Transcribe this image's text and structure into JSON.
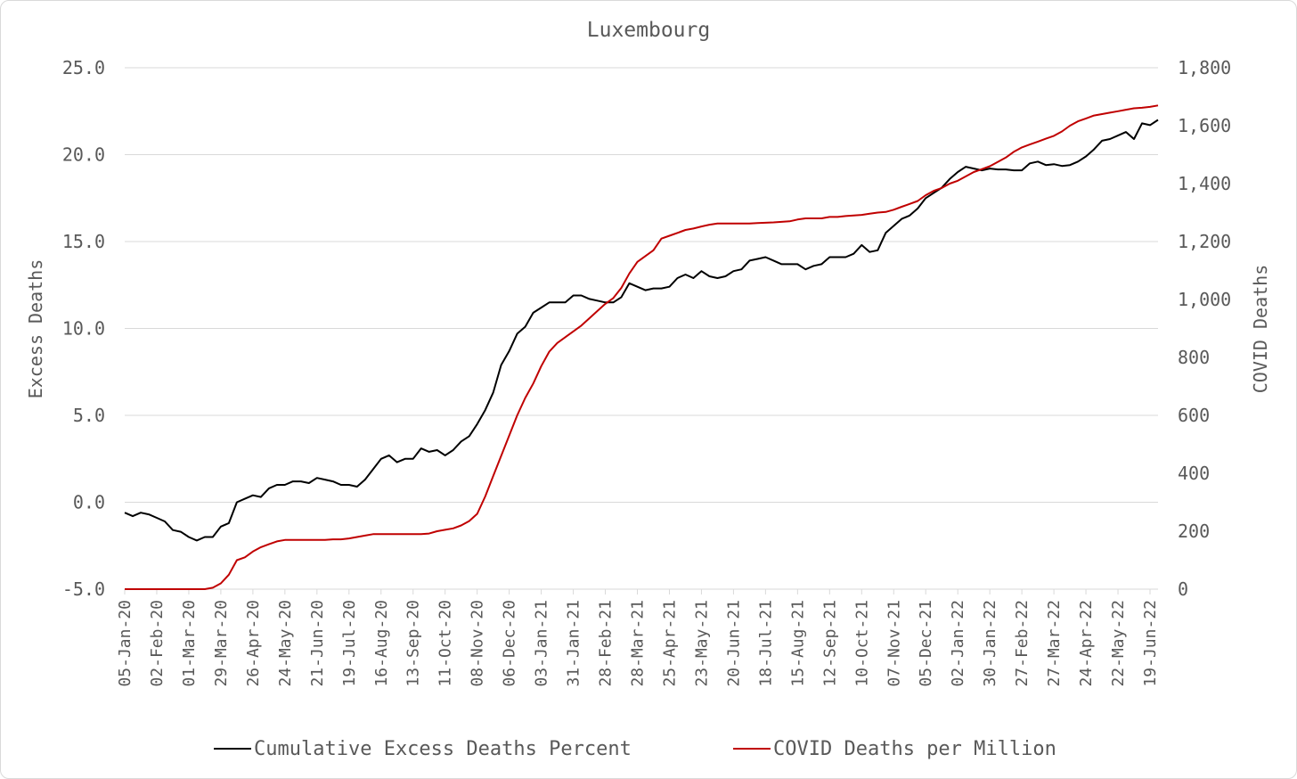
{
  "colors": {
    "excess": "#000000",
    "covid": "#c00000",
    "grid": "#d9d9d9",
    "text": "#595959"
  },
  "chart_data": {
    "type": "line",
    "title": "Luxembourg",
    "ylabel": "Excess Deaths",
    "y2label": "COVID Deaths",
    "ylim": [
      -5,
      25
    ],
    "y2lim": [
      0,
      1800
    ],
    "yticks": [
      "25.0",
      "20.0",
      "15.0",
      "10.0",
      "5.0",
      "0.0",
      "-5.0"
    ],
    "y2ticks": [
      "1,800",
      "1,600",
      "1,400",
      "1,200",
      "1,000",
      "800",
      "600",
      "400",
      "200",
      "0"
    ],
    "xticklabels": [
      "05-Jan-20",
      "02-Feb-20",
      "01-Mar-20",
      "29-Mar-20",
      "26-Apr-20",
      "24-May-20",
      "21-Jun-20",
      "19-Jul-20",
      "16-Aug-20",
      "13-Sep-20",
      "11-Oct-20",
      "08-Nov-20",
      "06-Dec-20",
      "03-Jan-21",
      "31-Jan-21",
      "28-Feb-21",
      "28-Mar-21",
      "25-Apr-21",
      "23-May-21",
      "20-Jun-21",
      "18-Jul-21",
      "15-Aug-21",
      "12-Sep-21",
      "10-Oct-21",
      "07-Nov-21",
      "05-Dec-21",
      "02-Jan-22",
      "30-Jan-22",
      "27-Feb-22",
      "27-Mar-22",
      "24-Apr-22",
      "22-May-22",
      "19-Jun-22"
    ],
    "x_note": "weekly points, week index 0 = 05-Jan-20",
    "grid": true,
    "legend_position": "bottom",
    "series": [
      {
        "name": "Cumulative Excess Deaths Percent",
        "axis": "left",
        "points": [
          [
            0,
            -0.6
          ],
          [
            1,
            -0.8
          ],
          [
            2,
            -0.6
          ],
          [
            3,
            -0.7
          ],
          [
            4,
            -0.9
          ],
          [
            5,
            -1.1
          ],
          [
            6,
            -1.6
          ],
          [
            7,
            -1.7
          ],
          [
            8,
            -2.0
          ],
          [
            9,
            -2.2
          ],
          [
            10,
            -2.0
          ],
          [
            11,
            -2.0
          ],
          [
            12,
            -1.4
          ],
          [
            13,
            -1.2
          ],
          [
            14,
            0.0
          ],
          [
            15,
            0.2
          ],
          [
            16,
            0.4
          ],
          [
            17,
            0.3
          ],
          [
            18,
            0.8
          ],
          [
            19,
            1.0
          ],
          [
            20,
            1.0
          ],
          [
            21,
            1.2
          ],
          [
            22,
            1.2
          ],
          [
            23,
            1.1
          ],
          [
            24,
            1.4
          ],
          [
            25,
            1.3
          ],
          [
            26,
            1.2
          ],
          [
            27,
            1.0
          ],
          [
            28,
            1.0
          ],
          [
            29,
            0.9
          ],
          [
            30,
            1.3
          ],
          [
            31,
            1.9
          ],
          [
            32,
            2.5
          ],
          [
            33,
            2.7
          ],
          [
            34,
            2.3
          ],
          [
            35,
            2.5
          ],
          [
            36,
            2.5
          ],
          [
            37,
            3.1
          ],
          [
            38,
            2.9
          ],
          [
            39,
            3.0
          ],
          [
            40,
            2.7
          ],
          [
            41,
            3.0
          ],
          [
            42,
            3.5
          ],
          [
            43,
            3.8
          ],
          [
            44,
            4.5
          ],
          [
            45,
            5.3
          ],
          [
            46,
            6.3
          ],
          [
            47,
            7.9
          ],
          [
            48,
            8.7
          ],
          [
            49,
            9.7
          ],
          [
            50,
            10.1
          ],
          [
            51,
            10.9
          ],
          [
            52,
            11.2
          ],
          [
            53,
            11.5
          ],
          [
            54,
            11.5
          ],
          [
            55,
            11.5
          ],
          [
            56,
            11.9
          ],
          [
            57,
            11.9
          ],
          [
            58,
            11.7
          ],
          [
            59,
            11.6
          ],
          [
            60,
            11.5
          ],
          [
            61,
            11.5
          ],
          [
            62,
            11.8
          ],
          [
            63,
            12.6
          ],
          [
            64,
            12.4
          ],
          [
            65,
            12.2
          ],
          [
            66,
            12.3
          ],
          [
            67,
            12.3
          ],
          [
            68,
            12.4
          ],
          [
            69,
            12.9
          ],
          [
            70,
            13.1
          ],
          [
            71,
            12.9
          ],
          [
            72,
            13.3
          ],
          [
            73,
            13.0
          ],
          [
            74,
            12.9
          ],
          [
            75,
            13.0
          ],
          [
            76,
            13.3
          ],
          [
            77,
            13.4
          ],
          [
            78,
            13.9
          ],
          [
            79,
            14.0
          ],
          [
            80,
            14.1
          ],
          [
            81,
            13.9
          ],
          [
            82,
            13.7
          ],
          [
            83,
            13.7
          ],
          [
            84,
            13.7
          ],
          [
            85,
            13.4
          ],
          [
            86,
            13.6
          ],
          [
            87,
            13.7
          ],
          [
            88,
            14.1
          ],
          [
            89,
            14.1
          ],
          [
            90,
            14.1
          ],
          [
            91,
            14.3
          ],
          [
            92,
            14.8
          ],
          [
            93,
            14.4
          ],
          [
            94,
            14.5
          ],
          [
            95,
            15.5
          ],
          [
            96,
            15.9
          ],
          [
            97,
            16.3
          ],
          [
            98,
            16.5
          ],
          [
            99,
            16.9
          ],
          [
            100,
            17.5
          ],
          [
            101,
            17.8
          ],
          [
            102,
            18.1
          ],
          [
            103,
            18.6
          ],
          [
            104,
            19.0
          ],
          [
            105,
            19.3
          ],
          [
            106,
            19.2
          ],
          [
            107,
            19.1
          ],
          [
            108,
            19.2
          ],
          [
            109,
            19.15
          ],
          [
            110,
            19.15
          ],
          [
            111,
            19.1
          ],
          [
            112,
            19.1
          ],
          [
            113,
            19.5
          ],
          [
            114,
            19.6
          ],
          [
            115,
            19.4
          ],
          [
            116,
            19.45
          ],
          [
            117,
            19.35
          ],
          [
            118,
            19.4
          ],
          [
            119,
            19.6
          ],
          [
            120,
            19.9
          ],
          [
            121,
            20.3
          ],
          [
            122,
            20.8
          ],
          [
            123,
            20.9
          ],
          [
            124,
            21.1
          ],
          [
            125,
            21.3
          ],
          [
            126,
            20.9
          ],
          [
            127,
            21.8
          ],
          [
            128,
            21.7
          ],
          [
            129,
            22.0
          ]
        ]
      },
      {
        "name": "COVID Deaths per Million",
        "axis": "right",
        "points": [
          [
            0,
            0
          ],
          [
            10,
            0
          ],
          [
            11,
            5
          ],
          [
            12,
            20
          ],
          [
            13,
            50
          ],
          [
            14,
            100
          ],
          [
            15,
            110
          ],
          [
            16,
            130
          ],
          [
            17,
            145
          ],
          [
            18,
            155
          ],
          [
            19,
            165
          ],
          [
            20,
            170
          ],
          [
            21,
            170
          ],
          [
            22,
            170
          ],
          [
            23,
            170
          ],
          [
            24,
            170
          ],
          [
            25,
            170
          ],
          [
            26,
            172
          ],
          [
            27,
            172
          ],
          [
            28,
            175
          ],
          [
            29,
            180
          ],
          [
            30,
            185
          ],
          [
            31,
            190
          ],
          [
            32,
            190
          ],
          [
            33,
            190
          ],
          [
            34,
            190
          ],
          [
            35,
            190
          ],
          [
            36,
            190
          ],
          [
            37,
            190
          ],
          [
            38,
            192
          ],
          [
            39,
            200
          ],
          [
            40,
            205
          ],
          [
            41,
            210
          ],
          [
            42,
            220
          ],
          [
            43,
            235
          ],
          [
            44,
            260
          ],
          [
            45,
            320
          ],
          [
            46,
            390
          ],
          [
            47,
            460
          ],
          [
            48,
            530
          ],
          [
            49,
            600
          ],
          [
            50,
            660
          ],
          [
            51,
            710
          ],
          [
            52,
            770
          ],
          [
            53,
            820
          ],
          [
            54,
            850
          ],
          [
            55,
            870
          ],
          [
            56,
            890
          ],
          [
            57,
            910
          ],
          [
            58,
            935
          ],
          [
            59,
            960
          ],
          [
            60,
            985
          ],
          [
            61,
            1005
          ],
          [
            62,
            1040
          ],
          [
            63,
            1090
          ],
          [
            64,
            1130
          ],
          [
            65,
            1150
          ],
          [
            66,
            1170
          ],
          [
            67,
            1210
          ],
          [
            68,
            1220
          ],
          [
            69,
            1230
          ],
          [
            70,
            1240
          ],
          [
            71,
            1245
          ],
          [
            72,
            1252
          ],
          [
            73,
            1258
          ],
          [
            74,
            1262
          ],
          [
            75,
            1262
          ],
          [
            76,
            1262
          ],
          [
            77,
            1262
          ],
          [
            78,
            1262
          ],
          [
            79,
            1264
          ],
          [
            80,
            1265
          ],
          [
            81,
            1266
          ],
          [
            82,
            1268
          ],
          [
            83,
            1270
          ],
          [
            84,
            1276
          ],
          [
            85,
            1280
          ],
          [
            86,
            1280
          ],
          [
            87,
            1280
          ],
          [
            88,
            1285
          ],
          [
            89,
            1285
          ],
          [
            90,
            1288
          ],
          [
            91,
            1290
          ],
          [
            92,
            1292
          ],
          [
            93,
            1296
          ],
          [
            94,
            1300
          ],
          [
            95,
            1302
          ],
          [
            96,
            1310
          ],
          [
            97,
            1320
          ],
          [
            98,
            1330
          ],
          [
            99,
            1340
          ],
          [
            100,
            1360
          ],
          [
            101,
            1375
          ],
          [
            102,
            1385
          ],
          [
            103,
            1400
          ],
          [
            104,
            1410
          ],
          [
            105,
            1425
          ],
          [
            106,
            1440
          ],
          [
            107,
            1450
          ],
          [
            108,
            1460
          ],
          [
            109,
            1475
          ],
          [
            110,
            1490
          ],
          [
            111,
            1510
          ],
          [
            112,
            1525
          ],
          [
            113,
            1535
          ],
          [
            114,
            1545
          ],
          [
            115,
            1555
          ],
          [
            116,
            1565
          ],
          [
            117,
            1580
          ],
          [
            118,
            1600
          ],
          [
            119,
            1615
          ],
          [
            120,
            1625
          ],
          [
            121,
            1635
          ],
          [
            122,
            1640
          ],
          [
            123,
            1645
          ],
          [
            124,
            1650
          ],
          [
            125,
            1655
          ],
          [
            126,
            1660
          ],
          [
            127,
            1662
          ],
          [
            128,
            1665
          ],
          [
            129,
            1670
          ]
        ]
      }
    ]
  }
}
